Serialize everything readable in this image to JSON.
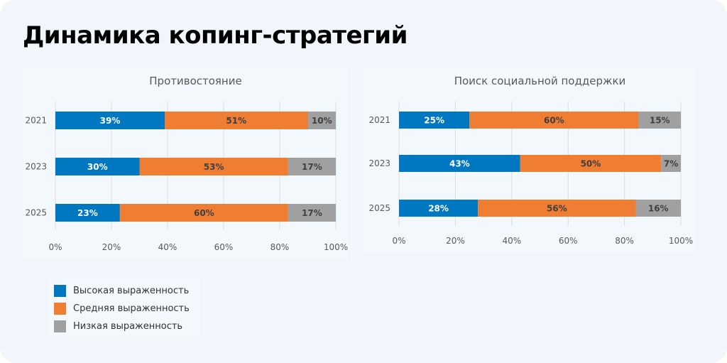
{
  "title": "Динамика копинг-стратегий",
  "legend": [
    "Высокая выраженность",
    "Средняя выраженность",
    "Низкая выраженность"
  ],
  "colors": [
    "#0077c1",
    "#ef7d32",
    "#a0a0a0"
  ],
  "chart_data": [
    {
      "type": "bar",
      "orientation": "horizontal",
      "stacked": "percent",
      "title": "Противостояние",
      "categories": [
        "2021",
        "2023",
        "2025"
      ],
      "series": [
        {
          "name": "Высокая выраженность",
          "values": [
            39,
            30,
            23
          ]
        },
        {
          "name": "Средняя выраженность",
          "values": [
            51,
            53,
            60
          ]
        },
        {
          "name": "Низкая выраженность",
          "values": [
            10,
            17,
            17
          ]
        }
      ],
      "xlim": [
        0,
        100
      ],
      "xticks": [
        "0%",
        "20%",
        "40%",
        "60%",
        "80%",
        "100%"
      ],
      "grid": true,
      "legend": "bottom-left"
    },
    {
      "type": "bar",
      "orientation": "horizontal",
      "stacked": "percent",
      "title": "Поиск социальной поддержки",
      "categories": [
        "2021",
        "2023",
        "2025"
      ],
      "series": [
        {
          "name": "Высокая выраженность",
          "values": [
            25,
            43,
            28
          ]
        },
        {
          "name": "Средняя выраженность",
          "values": [
            60,
            50,
            56
          ]
        },
        {
          "name": "Низкая выраженность",
          "values": [
            15,
            7,
            16
          ]
        }
      ],
      "xlim": [
        0,
        100
      ],
      "xticks": [
        "0%",
        "20%",
        "40%",
        "60%",
        "80%",
        "100%"
      ],
      "grid": true,
      "legend": "bottom-left"
    }
  ]
}
